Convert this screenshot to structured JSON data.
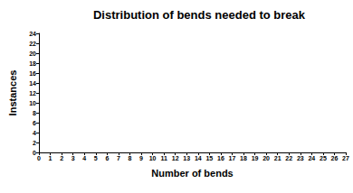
{
  "chart_data": {
    "type": "bar",
    "title": "Distribution of bends needed to break",
    "x_label": "Number of bends",
    "y_label": "Instances",
    "x": [],
    "values": [],
    "color": "#000000",
    "xlim": [
      0,
      27
    ],
    "xticks": [
      0,
      1,
      2,
      3,
      4,
      5,
      6,
      7,
      8,
      9,
      10,
      11,
      12,
      13,
      14,
      15,
      16,
      17,
      18,
      19,
      20,
      21,
      22,
      23,
      24,
      25,
      26,
      27
    ],
    "ylim": [
      0,
      24
    ],
    "yticks": [
      0,
      2,
      4,
      6,
      8,
      10,
      12,
      14,
      16,
      18,
      20,
      22,
      24
    ],
    "grid": false
  }
}
